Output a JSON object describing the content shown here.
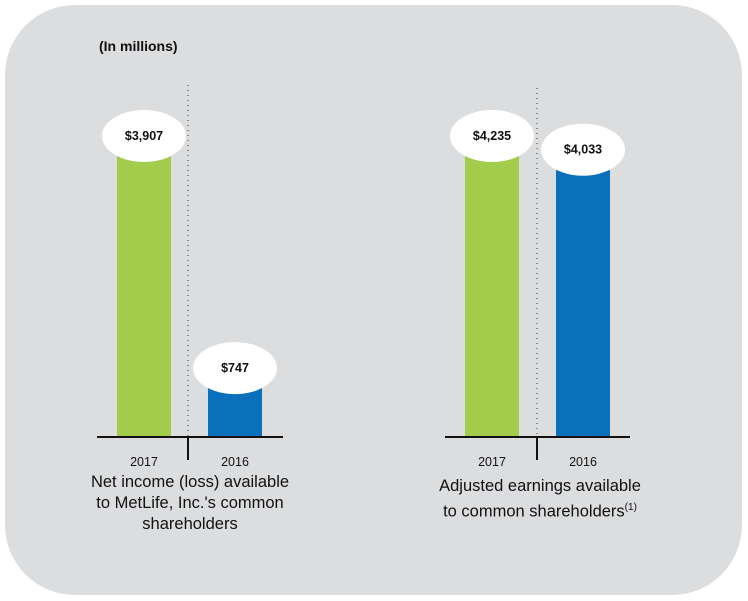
{
  "unit_label": "(In millions)",
  "colors": {
    "2017": "#a4cc4c",
    "2016": "#0a70bb",
    "background": "#dcdddf"
  },
  "chart_data": [
    {
      "type": "bar",
      "categories": [
        "2017",
        "2016"
      ],
      "values": [
        3907,
        747
      ],
      "data_labels": [
        "$3,907",
        "$747"
      ],
      "caption": "Net income (loss) available to MetLife, Inc.'s common shareholders",
      "caption_lines": [
        "Net income (loss) available",
        "to MetLife, Inc.'s common",
        "shareholders"
      ]
    },
    {
      "type": "bar",
      "categories": [
        "2017",
        "2016"
      ],
      "values": [
        4235,
        4033
      ],
      "data_labels": [
        "$4,235",
        "$4,033"
      ],
      "caption": "Adjusted earnings available to common shareholders(1)",
      "caption_lines": [
        "Adjusted earnings available",
        "to common shareholders"
      ],
      "footnote": "(1)"
    }
  ]
}
